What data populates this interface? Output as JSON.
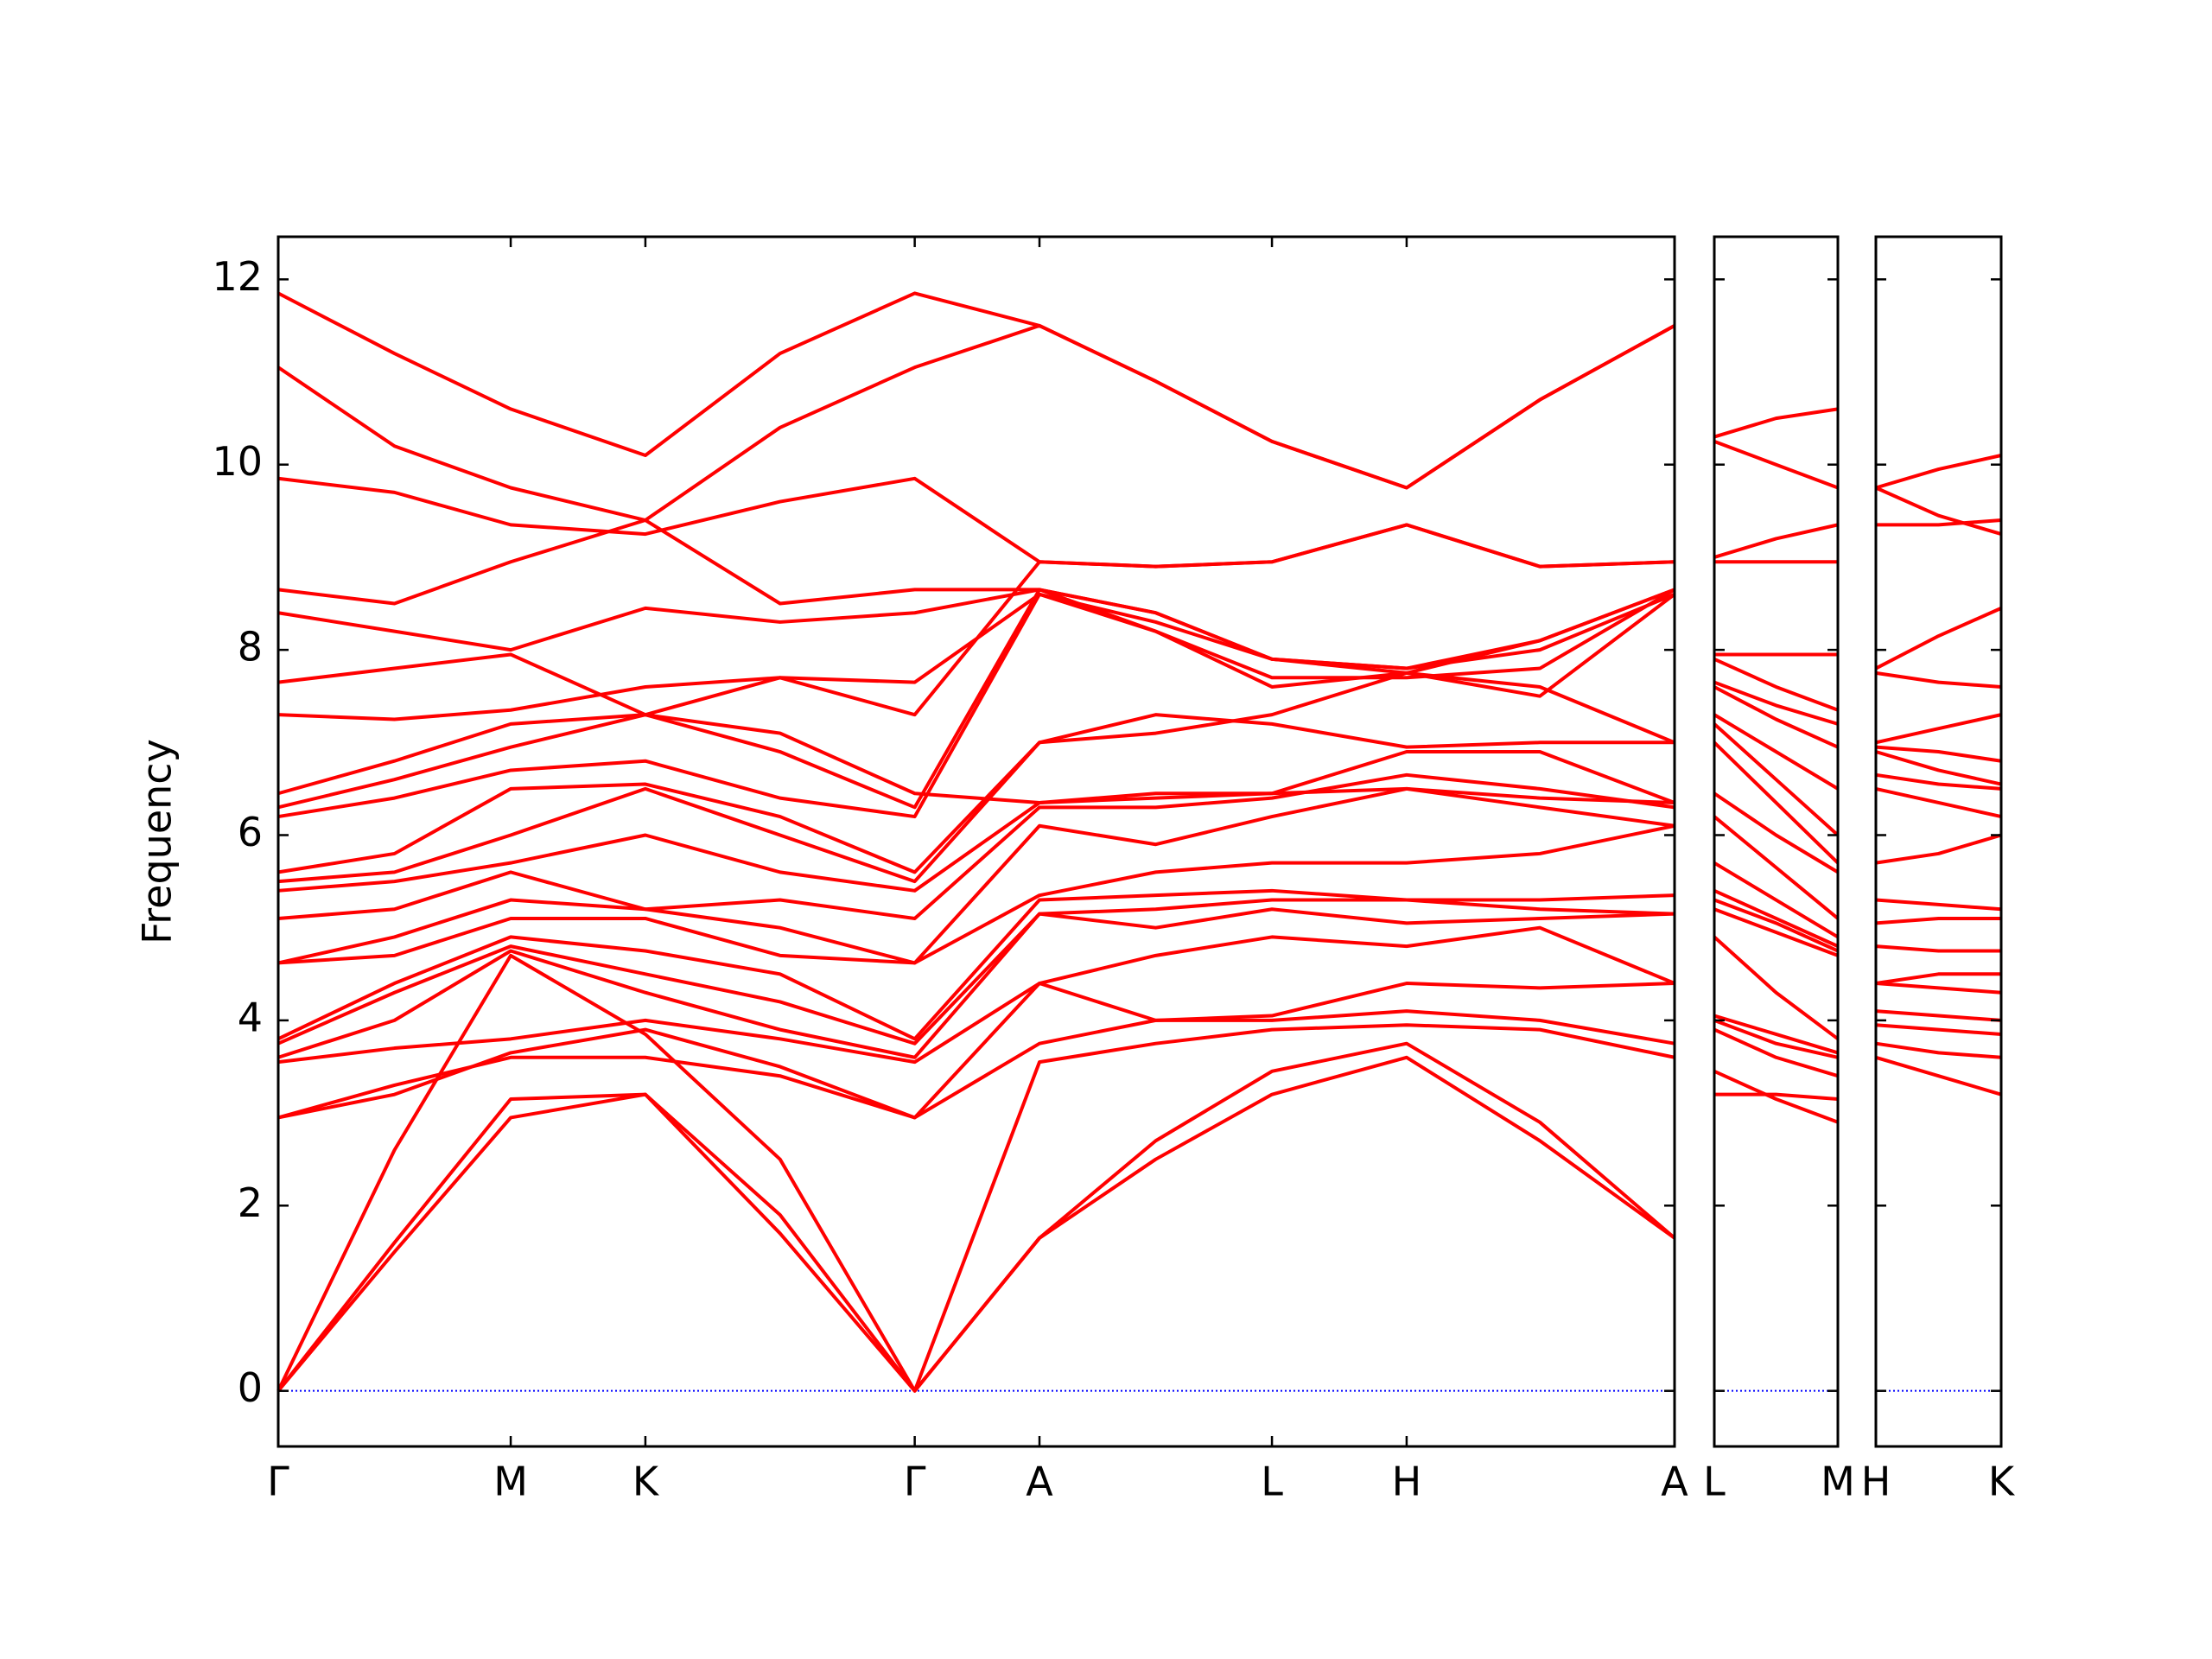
{
  "chart_data": [
    {
      "type": "line",
      "y_label": "Frequency",
      "color": "#ff0000",
      "grid": false,
      "zero_line": {
        "value": 0,
        "color": "#0000ff"
      },
      "xlim": [
        0,
        9.85
      ],
      "ylim": [
        -0.6,
        12.46
      ],
      "yticks": [
        0,
        2,
        4,
        6,
        8,
        10,
        12
      ],
      "ytick_labels": true,
      "xticks": [
        {
          "value": 0,
          "label": "Γ"
        },
        {
          "value": 1.64,
          "label": "M"
        },
        {
          "value": 2.59,
          "label": "K"
        },
        {
          "value": 4.49,
          "label": "Γ"
        },
        {
          "value": 5.37,
          "label": "A"
        },
        {
          "value": 7.01,
          "label": "L"
        },
        {
          "value": 7.96,
          "label": "H"
        },
        {
          "value": 9.85,
          "label": "A"
        }
      ],
      "x": [
        0,
        0.82,
        1.64,
        2.59,
        3.54,
        4.49,
        5.37,
        6.19,
        7.01,
        7.96,
        8.9,
        9.85
      ],
      "series": [
        {
          "values": [
            0,
            1.5,
            2.95,
            3.2,
            1.7,
            0,
            1.65,
            2.5,
            3.2,
            3.6,
            2.7,
            1.65
          ]
        },
        {
          "values": [
            0,
            1.6,
            3.15,
            3.2,
            1.9,
            0,
            1.65,
            2.7,
            3.45,
            3.75,
            2.9,
            1.65
          ]
        },
        {
          "values": [
            0,
            2.6,
            4.7,
            3.85,
            2.5,
            0,
            3.55,
            3.75,
            3.9,
            3.95,
            3.9,
            3.6
          ]
        },
        {
          "values": [
            2.95,
            3.3,
            3.6,
            3.6,
            3.4,
            2.95,
            3.75,
            4.0,
            4.0,
            4.1,
            4.0,
            3.75
          ]
        },
        {
          "values": [
            2.95,
            3.2,
            3.65,
            3.9,
            3.5,
            2.95,
            4.4,
            4.0,
            4.05,
            4.4,
            4.35,
            4.4
          ]
        },
        {
          "values": [
            3.55,
            3.7,
            3.8,
            4.0,
            3.8,
            3.55,
            4.4,
            4.7,
            4.9,
            4.8,
            5.0,
            4.4
          ]
        },
        {
          "values": [
            3.6,
            4.0,
            4.75,
            4.3,
            3.9,
            3.6,
            5.15,
            5.0,
            5.2,
            5.05,
            5.1,
            5.15
          ]
        },
        {
          "values": [
            3.75,
            4.3,
            4.8,
            4.5,
            4.2,
            3.75,
            5.15,
            5.2,
            5.3,
            5.3,
            5.2,
            5.15
          ]
        },
        {
          "values": [
            3.8,
            4.4,
            4.9,
            4.75,
            4.5,
            3.8,
            5.3,
            5.35,
            5.4,
            5.3,
            5.3,
            5.35
          ]
        },
        {
          "values": [
            4.62,
            4.7,
            5.1,
            5.1,
            4.7,
            4.62,
            5.35,
            5.6,
            5.7,
            5.7,
            5.8,
            6.1
          ]
        },
        {
          "values": [
            4.62,
            4.9,
            5.3,
            5.2,
            5.0,
            4.62,
            6.1,
            5.9,
            6.2,
            6.5,
            6.3,
            6.1
          ]
        },
        {
          "values": [
            5.1,
            5.2,
            5.6,
            5.2,
            5.3,
            5.1,
            6.3,
            6.3,
            6.4,
            6.65,
            6.5,
            6.3
          ]
        },
        {
          "values": [
            5.4,
            5.5,
            5.7,
            6.0,
            5.6,
            5.4,
            6.35,
            6.45,
            6.45,
            6.9,
            6.9,
            6.35
          ]
        },
        {
          "values": [
            5.5,
            5.6,
            6.0,
            6.5,
            6.0,
            5.5,
            7.0,
            7.3,
            7.2,
            6.95,
            7.0,
            7.0
          ]
        },
        {
          "values": [
            5.6,
            5.8,
            6.5,
            6.55,
            6.2,
            5.6,
            7.0,
            7.1,
            7.3,
            7.75,
            7.6,
            7.0
          ]
        },
        {
          "values": [
            6.2,
            6.4,
            6.7,
            6.8,
            6.4,
            6.2,
            8.6,
            8.2,
            7.6,
            7.75,
            7.5,
            8.6
          ]
        },
        {
          "values": [
            6.3,
            6.6,
            6.95,
            7.3,
            6.9,
            6.3,
            8.65,
            8.4,
            7.9,
            7.8,
            8.1,
            8.65
          ]
        },
        {
          "values": [
            6.45,
            6.8,
            7.2,
            7.3,
            7.1,
            6.45,
            6.35,
            6.4,
            6.45,
            6.5,
            6.4,
            6.35
          ]
        },
        {
          "values": [
            7.3,
            7.25,
            7.35,
            7.6,
            7.7,
            7.3,
            8.95,
            8.9,
            8.95,
            9.35,
            8.9,
            8.95
          ]
        },
        {
          "values": [
            7.65,
            7.8,
            7.95,
            7.3,
            7.7,
            7.65,
            8.6,
            8.3,
            7.9,
            7.8,
            8.0,
            8.6
          ]
        },
        {
          "values": [
            8.4,
            8.2,
            8.0,
            8.45,
            8.3,
            8.4,
            8.65,
            8.4,
            7.9,
            7.75,
            8.1,
            8.65
          ]
        },
        {
          "values": [
            8.65,
            8.5,
            8.95,
            9.4,
            8.5,
            8.65,
            8.65,
            8.2,
            7.7,
            7.7,
            7.8,
            8.65
          ]
        },
        {
          "values": [
            9.85,
            9.7,
            9.35,
            9.25,
            9.6,
            9.85,
            8.95,
            8.9,
            8.95,
            9.35,
            8.9,
            8.95
          ]
        },
        {
          "values": [
            11.05,
            10.2,
            9.75,
            9.4,
            10.4,
            11.05,
            11.5,
            10.9,
            10.25,
            9.75,
            10.7,
            11.5
          ]
        },
        {
          "values": [
            11.85,
            11.2,
            10.6,
            10.1,
            11.2,
            11.85,
            11.5,
            10.9,
            10.25,
            9.75,
            10.7,
            11.5
          ]
        }
      ]
    },
    {
      "type": "line",
      "color": "#ff0000",
      "grid": false,
      "zero_line": {
        "value": 0,
        "color": "#0000ff"
      },
      "xlim": [
        0,
        0.88
      ],
      "ylim": [
        -0.6,
        12.46
      ],
      "yticks": [
        0,
        2,
        4,
        6,
        8,
        10,
        12
      ],
      "ytick_labels": false,
      "xticks": [
        {
          "value": 0,
          "label": "L"
        },
        {
          "value": 0.88,
          "label": "M"
        }
      ],
      "x": [
        0,
        0.44,
        0.88
      ],
      "series": [
        {
          "values": [
            3.2,
            3.2,
            3.15
          ]
        },
        {
          "values": [
            3.45,
            3.15,
            2.9
          ]
        },
        {
          "values": [
            3.9,
            3.6,
            3.4
          ]
        },
        {
          "values": [
            4.0,
            3.75,
            3.6
          ]
        },
        {
          "values": [
            4.05,
            3.85,
            3.65
          ]
        },
        {
          "values": [
            4.9,
            4.3,
            3.8
          ]
        },
        {
          "values": [
            5.2,
            4.95,
            4.7
          ]
        },
        {
          "values": [
            5.3,
            5.05,
            4.75
          ]
        },
        {
          "values": [
            5.4,
            5.1,
            4.8
          ]
        },
        {
          "values": [
            5.7,
            5.3,
            4.9
          ]
        },
        {
          "values": [
            6.2,
            5.65,
            5.1
          ]
        },
        {
          "values": [
            6.45,
            6.0,
            5.6
          ]
        },
        {
          "values": [
            7.0,
            6.35,
            5.7
          ]
        },
        {
          "values": [
            7.2,
            6.6,
            6.0
          ]
        },
        {
          "values": [
            7.3,
            6.9,
            6.5
          ]
        },
        {
          "values": [
            7.6,
            7.25,
            6.95
          ]
        },
        {
          "values": [
            7.65,
            7.4,
            7.2
          ]
        },
        {
          "values": [
            7.9,
            7.6,
            7.35
          ]
        },
        {
          "values": [
            7.95,
            7.95,
            7.95
          ]
        },
        {
          "values": [
            8.95,
            8.95,
            8.95
          ]
        },
        {
          "values": [
            9.0,
            9.2,
            9.35
          ]
        },
        {
          "values": [
            10.25,
            10.0,
            9.75
          ]
        },
        {
          "values": [
            10.3,
            10.5,
            10.6
          ]
        }
      ]
    },
    {
      "type": "line",
      "color": "#ff0000",
      "grid": false,
      "zero_line": {
        "value": 0,
        "color": "#0000ff"
      },
      "xlim": [
        0,
        0.88
      ],
      "ylim": [
        -0.6,
        12.46
      ],
      "yticks": [
        0,
        2,
        4,
        6,
        8,
        10,
        12
      ],
      "ytick_labels": false,
      "xticks": [
        {
          "value": 0,
          "label": "H"
        },
        {
          "value": 0.88,
          "label": "K"
        }
      ],
      "x": [
        0,
        0.44,
        0.88
      ],
      "series": [
        {
          "values": [
            3.6,
            3.4,
            3.2
          ]
        },
        {
          "values": [
            3.75,
            3.65,
            3.6
          ]
        },
        {
          "values": [
            3.95,
            3.9,
            3.85
          ]
        },
        {
          "values": [
            4.1,
            4.05,
            4.0
          ]
        },
        {
          "values": [
            4.4,
            4.35,
            4.3
          ]
        },
        {
          "values": [
            4.4,
            4.5,
            4.5
          ]
        },
        {
          "values": [
            4.8,
            4.75,
            4.75
          ]
        },
        {
          "values": [
            5.05,
            5.1,
            5.1
          ]
        },
        {
          "values": [
            5.3,
            5.25,
            5.2
          ]
        },
        {
          "values": [
            5.7,
            5.8,
            6.0
          ]
        },
        {
          "values": [
            6.5,
            6.35,
            6.2
          ]
        },
        {
          "values": [
            6.65,
            6.55,
            6.5
          ]
        },
        {
          "values": [
            6.9,
            6.7,
            6.55
          ]
        },
        {
          "values": [
            6.95,
            6.9,
            6.8
          ]
        },
        {
          "values": [
            7.0,
            7.15,
            7.3
          ]
        },
        {
          "values": [
            7.75,
            7.65,
            7.6
          ]
        },
        {
          "values": [
            7.8,
            8.15,
            8.45
          ]
        },
        {
          "values": [
            9.35,
            9.35,
            9.4
          ]
        },
        {
          "values": [
            9.75,
            9.45,
            9.25
          ]
        },
        {
          "values": [
            9.75,
            9.95,
            10.1
          ]
        }
      ]
    }
  ]
}
